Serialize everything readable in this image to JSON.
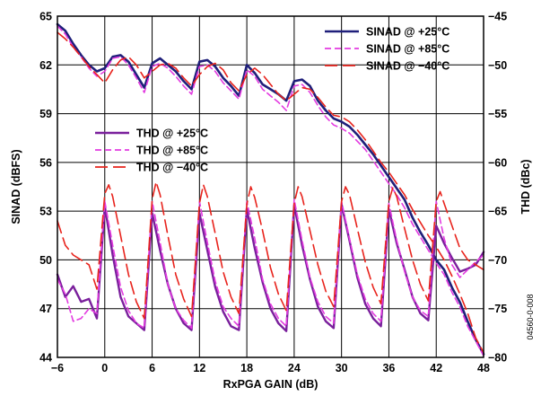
{
  "chart_data": {
    "type": "line",
    "xlabel": "RxPGA GAIN (dB)",
    "ylabel_left": "SINAD (dBFS)",
    "ylabel_right": "THD (dBc)",
    "xlim": [
      -6,
      48
    ],
    "ylim_left": [
      44,
      65
    ],
    "ylim_right": [
      -80,
      -45
    ],
    "xticks": [
      -6,
      0,
      6,
      12,
      18,
      24,
      30,
      36,
      42,
      48
    ],
    "yticks_left": [
      44,
      47,
      50,
      53,
      56,
      59,
      62,
      65
    ],
    "yticks_right": [
      -80,
      -75,
      -70,
      -65,
      -60,
      -55,
      -50,
      -45
    ],
    "grid": true,
    "figure_id": "04560-0-008",
    "colors": {
      "t25": "#1f1f7a",
      "t85": "#e33be0",
      "tm40": "#e8231c",
      "thd25": "#7a1f9c"
    },
    "legends": [
      {
        "position": "top-right",
        "entries": [
          {
            "label": "SINAD @ +25°C",
            "color": "#1f1f7a",
            "style": "solid"
          },
          {
            "label": "SINAD @ +85°C",
            "color": "#e33be0",
            "style": "dashed"
          },
          {
            "label": "SINAD @ −40°C",
            "color": "#e8231c",
            "style": "longdash"
          }
        ]
      },
      {
        "position": "middle-left",
        "entries": [
          {
            "label": "THD @ +25°C",
            "color": "#7a1f9c",
            "style": "solid"
          },
          {
            "label": "THD @ +85°C",
            "color": "#e33be0",
            "style": "dashed"
          },
          {
            "label": "THD @ −40°C",
            "color": "#e8231c",
            "style": "longdash"
          }
        ]
      }
    ],
    "series": [
      {
        "name": "SINAD @ +25°C",
        "axis": "left",
        "color": "#1f1f7a",
        "style": "solid",
        "width": 2.6,
        "x": [
          -6,
          -5,
          -4,
          -3,
          -2,
          -1,
          0,
          1,
          2,
          3,
          4,
          5,
          6,
          7,
          8,
          9,
          10,
          11,
          12,
          13,
          14,
          15,
          16,
          17,
          18,
          19,
          20,
          21,
          22,
          23,
          24,
          25,
          26,
          27,
          28,
          29,
          30,
          31,
          32,
          33,
          34,
          35,
          36,
          37,
          38,
          39,
          40,
          41,
          42,
          43,
          44,
          45,
          46,
          47,
          48
        ],
        "y": [
          64.5,
          64.1,
          63.3,
          62.6,
          62.0,
          61.6,
          61.8,
          62.5,
          62.6,
          62.2,
          61.4,
          60.6,
          62.1,
          62.4,
          62.0,
          61.6,
          61.0,
          60.5,
          62.2,
          62.3,
          61.9,
          61.2,
          60.7,
          60.1,
          62.0,
          61.5,
          60.8,
          60.5,
          60.2,
          59.8,
          61.0,
          61.1,
          60.7,
          59.8,
          59.2,
          58.7,
          58.5,
          58.2,
          57.7,
          57.1,
          56.5,
          55.8,
          55.1,
          54.4,
          53.7,
          52.6,
          51.7,
          50.9,
          50.0,
          49.4,
          48.3,
          47.4,
          46.2,
          45.1,
          44.2
        ]
      },
      {
        "name": "SINAD @ +85°C",
        "axis": "left",
        "color": "#e33be0",
        "style": "dashed",
        "width": 1.6,
        "x": [
          -6,
          -5,
          -4,
          -3,
          -2,
          -1,
          0,
          1,
          2,
          3,
          4,
          5,
          6,
          7,
          8,
          9,
          10,
          11,
          12,
          13,
          14,
          15,
          16,
          17,
          18,
          19,
          20,
          21,
          22,
          23,
          24,
          25,
          26,
          27,
          28,
          29,
          30,
          31,
          32,
          33,
          34,
          35,
          36,
          37,
          38,
          39,
          40,
          41,
          42,
          43,
          44,
          45,
          46,
          47,
          48
        ],
        "y": [
          64.4,
          63.9,
          63.1,
          62.5,
          61.8,
          61.3,
          61.6,
          62.4,
          62.5,
          62.0,
          61.2,
          60.3,
          61.9,
          62.1,
          61.8,
          61.3,
          60.7,
          60.2,
          61.9,
          62.0,
          61.6,
          60.9,
          60.4,
          59.9,
          61.7,
          61.3,
          60.5,
          60.1,
          59.7,
          59.2,
          60.7,
          60.8,
          60.3,
          59.5,
          58.8,
          58.3,
          58.1,
          57.8,
          57.3,
          56.8,
          56.1,
          55.4,
          54.7,
          54.0,
          53.2,
          52.2,
          51.4,
          50.6,
          49.8,
          49.1,
          48.0,
          47.1,
          45.9,
          45.0,
          44.1
        ]
      },
      {
        "name": "SINAD @ −40°C",
        "axis": "left",
        "color": "#e8231c",
        "style": "longdash",
        "width": 1.6,
        "x": [
          -6,
          -5,
          -4,
          -3,
          -2,
          -1,
          0,
          1,
          2,
          3,
          4,
          5,
          6,
          7,
          8,
          9,
          10,
          11,
          12,
          13,
          14,
          15,
          16,
          17,
          18,
          19,
          20,
          21,
          22,
          23,
          24,
          25,
          26,
          27,
          28,
          29,
          30,
          31,
          32,
          33,
          34,
          35,
          36,
          37,
          38,
          39,
          40,
          41,
          42,
          43,
          44,
          45,
          46,
          47,
          48
        ],
        "y": [
          64.0,
          63.6,
          63.1,
          62.5,
          61.9,
          61.4,
          60.9,
          61.7,
          62.3,
          62.5,
          62.0,
          61.2,
          61.6,
          62.0,
          62.1,
          61.8,
          61.2,
          60.7,
          61.4,
          61.9,
          62.1,
          61.7,
          60.9,
          60.4,
          61.4,
          61.8,
          61.4,
          60.8,
          60.2,
          59.8,
          60.2,
          60.6,
          60.5,
          60.0,
          59.4,
          58.9,
          58.8,
          58.5,
          58.0,
          57.4,
          56.7,
          56.0,
          55.4,
          54.7,
          54.0,
          53.1,
          52.3,
          51.5,
          50.8,
          50.0,
          49.0,
          47.9,
          46.7,
          45.2,
          44.3
        ]
      },
      {
        "name": "THD @ +25°C",
        "axis": "right",
        "color": "#7a1f9c",
        "style": "solid",
        "width": 2.4,
        "x": [
          -6,
          -5,
          -4,
          -3,
          -2,
          -1,
          0,
          1,
          2,
          3,
          4,
          5,
          6,
          7,
          8,
          9,
          10,
          11,
          12,
          13,
          14,
          15,
          16,
          17,
          18,
          19,
          20,
          21,
          22,
          23,
          24,
          25,
          26,
          27,
          28,
          29,
          30,
          31,
          32,
          33,
          34,
          35,
          36,
          37,
          38,
          39,
          40,
          41,
          42,
          43,
          44,
          45,
          46,
          47,
          48
        ],
        "y": [
          -71.5,
          -73.8,
          -72.7,
          -74.3,
          -74.0,
          -76.0,
          -64.5,
          -69.5,
          -73.8,
          -75.8,
          -76.5,
          -77.2,
          -65.2,
          -69.0,
          -72.5,
          -75.0,
          -76.5,
          -77.2,
          -65.2,
          -69.0,
          -72.8,
          -75.3,
          -76.8,
          -77.2,
          -64.8,
          -68.8,
          -72.3,
          -75.0,
          -76.5,
          -77.3,
          -64.4,
          -68.5,
          -72.0,
          -74.8,
          -76.3,
          -77.0,
          -64.3,
          -68.0,
          -71.8,
          -74.5,
          -76.0,
          -76.8,
          -64.8,
          -68.3,
          -71.0,
          -73.8,
          -75.5,
          -76.2,
          -66.5,
          -68.3,
          -69.8,
          -71.2,
          -70.9,
          -70.5,
          -69.2
        ]
      },
      {
        "name": "THD @ +85°C",
        "axis": "right",
        "color": "#e33be0",
        "style": "dashed",
        "width": 1.6,
        "x": [
          -6,
          -5,
          -4,
          -3,
          -2,
          -1,
          0,
          1,
          2,
          3,
          4,
          5,
          6,
          7,
          8,
          9,
          10,
          11,
          12,
          13,
          14,
          15,
          16,
          17,
          18,
          19,
          20,
          21,
          22,
          23,
          24,
          25,
          26,
          27,
          28,
          29,
          30,
          31,
          32,
          33,
          34,
          35,
          36,
          37,
          38,
          39,
          40,
          41,
          42,
          43,
          44,
          45,
          46,
          47,
          48
        ],
        "y": [
          -72.0,
          -73.5,
          -76.3,
          -76.0,
          -75.0,
          -75.5,
          -64.0,
          -68.5,
          -72.8,
          -75.2,
          -76.5,
          -77.0,
          -64.0,
          -68.2,
          -72.5,
          -75.0,
          -76.2,
          -77.0,
          -64.0,
          -68.2,
          -72.2,
          -74.8,
          -76.0,
          -76.8,
          -64.0,
          -67.8,
          -72.0,
          -74.5,
          -76.0,
          -76.8,
          -63.8,
          -68.0,
          -71.8,
          -74.3,
          -75.8,
          -76.5,
          -64.0,
          -67.8,
          -71.5,
          -74.0,
          -75.5,
          -76.3,
          -64.2,
          -68.0,
          -71.2,
          -73.8,
          -75.2,
          -75.8,
          -64.0,
          -67.8,
          -70.5,
          -71.8,
          -71.0,
          -70.2,
          -69.5
        ]
      },
      {
        "name": "THD @ −40°C",
        "axis": "right",
        "color": "#e8231c",
        "style": "longdash",
        "width": 1.6,
        "x": [
          -6,
          -5,
          -4,
          -3,
          -2,
          -1,
          0,
          0.5,
          1,
          2,
          3,
          4,
          5,
          6,
          6.5,
          7,
          8,
          9,
          10,
          11,
          12,
          12.5,
          13,
          14,
          15,
          16,
          17,
          18,
          18.5,
          19,
          20,
          21,
          22,
          23,
          24,
          24.5,
          25,
          26,
          27,
          28,
          29,
          30,
          30.5,
          31,
          32,
          33,
          34,
          35,
          36,
          36.5,
          37,
          38,
          39,
          40,
          41,
          42,
          42.5,
          43,
          44,
          45,
          46,
          47,
          48
        ],
        "y": [
          -66.0,
          -68.5,
          -69.5,
          -70.0,
          -70.5,
          -73.0,
          -63.2,
          -62.3,
          -63.5,
          -67.5,
          -71.5,
          -74.3,
          -76.0,
          -63.8,
          -62.0,
          -63.3,
          -67.5,
          -71.5,
          -74.0,
          -75.8,
          -64.2,
          -62.3,
          -63.5,
          -67.3,
          -71.2,
          -73.8,
          -75.5,
          -64.3,
          -62.5,
          -63.6,
          -67.0,
          -70.8,
          -73.5,
          -75.2,
          -64.2,
          -62.5,
          -63.5,
          -67.0,
          -70.5,
          -73.2,
          -74.8,
          -64.0,
          -62.5,
          -63.3,
          -66.8,
          -70.2,
          -72.8,
          -74.5,
          -64.0,
          -62.6,
          -63.5,
          -66.8,
          -70.0,
          -72.5,
          -74.2,
          -64.0,
          -63.0,
          -64.2,
          -66.5,
          -68.8,
          -70.0,
          -70.5,
          -71.0
        ]
      }
    ]
  }
}
